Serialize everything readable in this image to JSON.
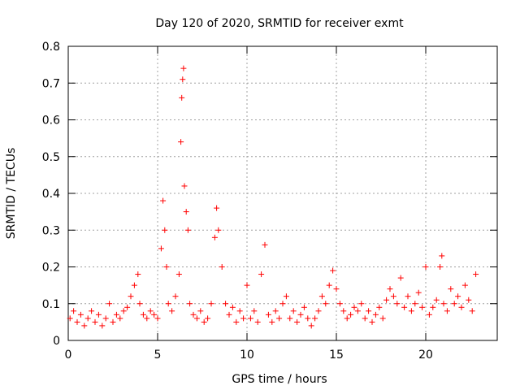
{
  "chart_data": {
    "type": "scatter",
    "title": "Day 120 of 2020, SRMTID for receiver exmt",
    "xlabel": "GPS time / hours",
    "ylabel": "SRMTID / TECUs",
    "xlim": [
      0,
      24
    ],
    "ylim": [
      0,
      0.8
    ],
    "xticks": [
      0,
      5,
      10,
      15,
      20
    ],
    "yticks": [
      0,
      0.1,
      0.2,
      0.3,
      0.4,
      0.5,
      0.6,
      0.7,
      0.8
    ],
    "xtick_labels": [
      "0",
      "5",
      "10",
      "15",
      "20"
    ],
    "ytick_labels": [
      "0",
      "0.1",
      "0.2",
      "0.3",
      "0.4",
      "0.5",
      "0.6",
      "0.7",
      "0.8"
    ],
    "grid": true,
    "marker": "+",
    "marker_color": "#ff0000",
    "series": [
      {
        "name": "SRMTID",
        "points": [
          [
            0.1,
            0.06
          ],
          [
            0.3,
            0.08
          ],
          [
            0.5,
            0.05
          ],
          [
            0.7,
            0.07
          ],
          [
            0.9,
            0.04
          ],
          [
            1.1,
            0.06
          ],
          [
            1.3,
            0.08
          ],
          [
            1.5,
            0.05
          ],
          [
            1.7,
            0.07
          ],
          [
            1.9,
            0.04
          ],
          [
            2.1,
            0.06
          ],
          [
            2.3,
            0.1
          ],
          [
            2.5,
            0.05
          ],
          [
            2.7,
            0.07
          ],
          [
            2.9,
            0.06
          ],
          [
            3.1,
            0.08
          ],
          [
            3.3,
            0.09
          ],
          [
            3.5,
            0.12
          ],
          [
            3.7,
            0.15
          ],
          [
            3.9,
            0.18
          ],
          [
            4.0,
            0.1
          ],
          [
            4.2,
            0.07
          ],
          [
            4.4,
            0.06
          ],
          [
            4.6,
            0.08
          ],
          [
            4.8,
            0.07
          ],
          [
            5.0,
            0.06
          ],
          [
            5.2,
            0.25
          ],
          [
            5.3,
            0.38
          ],
          [
            5.4,
            0.3
          ],
          [
            5.5,
            0.2
          ],
          [
            5.6,
            0.1
          ],
          [
            5.8,
            0.08
          ],
          [
            6.0,
            0.12
          ],
          [
            6.2,
            0.18
          ],
          [
            6.3,
            0.54
          ],
          [
            6.35,
            0.66
          ],
          [
            6.4,
            0.71
          ],
          [
            6.45,
            0.74
          ],
          [
            6.5,
            0.42
          ],
          [
            6.6,
            0.35
          ],
          [
            6.7,
            0.3
          ],
          [
            6.8,
            0.1
          ],
          [
            7.0,
            0.07
          ],
          [
            7.2,
            0.06
          ],
          [
            7.4,
            0.08
          ],
          [
            7.6,
            0.05
          ],
          [
            7.8,
            0.06
          ],
          [
            8.0,
            0.1
          ],
          [
            8.2,
            0.28
          ],
          [
            8.3,
            0.36
          ],
          [
            8.4,
            0.3
          ],
          [
            8.6,
            0.2
          ],
          [
            8.8,
            0.1
          ],
          [
            9.0,
            0.07
          ],
          [
            9.2,
            0.09
          ],
          [
            9.4,
            0.05
          ],
          [
            9.6,
            0.08
          ],
          [
            9.8,
            0.06
          ],
          [
            10.0,
            0.15
          ],
          [
            10.2,
            0.06
          ],
          [
            10.4,
            0.08
          ],
          [
            10.6,
            0.05
          ],
          [
            10.8,
            0.18
          ],
          [
            11.0,
            0.26
          ],
          [
            11.2,
            0.07
          ],
          [
            11.4,
            0.05
          ],
          [
            11.6,
            0.08
          ],
          [
            11.8,
            0.06
          ],
          [
            12.0,
            0.1
          ],
          [
            12.2,
            0.12
          ],
          [
            12.4,
            0.06
          ],
          [
            12.6,
            0.08
          ],
          [
            12.8,
            0.05
          ],
          [
            13.0,
            0.07
          ],
          [
            13.2,
            0.09
          ],
          [
            13.4,
            0.06
          ],
          [
            13.6,
            0.04
          ],
          [
            13.8,
            0.06
          ],
          [
            14.0,
            0.08
          ],
          [
            14.2,
            0.12
          ],
          [
            14.4,
            0.1
          ],
          [
            14.6,
            0.15
          ],
          [
            14.8,
            0.19
          ],
          [
            15.0,
            0.14
          ],
          [
            15.2,
            0.1
          ],
          [
            15.4,
            0.08
          ],
          [
            15.6,
            0.06
          ],
          [
            15.8,
            0.07
          ],
          [
            16.0,
            0.09
          ],
          [
            16.2,
            0.08
          ],
          [
            16.4,
            0.1
          ],
          [
            16.6,
            0.06
          ],
          [
            16.8,
            0.08
          ],
          [
            17.0,
            0.05
          ],
          [
            17.2,
            0.07
          ],
          [
            17.4,
            0.09
          ],
          [
            17.6,
            0.06
          ],
          [
            17.8,
            0.11
          ],
          [
            18.0,
            0.14
          ],
          [
            18.2,
            0.12
          ],
          [
            18.4,
            0.1
          ],
          [
            18.6,
            0.17
          ],
          [
            18.8,
            0.09
          ],
          [
            19.0,
            0.12
          ],
          [
            19.2,
            0.08
          ],
          [
            19.4,
            0.1
          ],
          [
            19.6,
            0.13
          ],
          [
            19.8,
            0.09
          ],
          [
            20.0,
            0.2
          ],
          [
            20.2,
            0.07
          ],
          [
            20.4,
            0.09
          ],
          [
            20.6,
            0.11
          ],
          [
            20.8,
            0.2
          ],
          [
            20.9,
            0.23
          ],
          [
            21.0,
            0.1
          ],
          [
            21.2,
            0.08
          ],
          [
            21.4,
            0.14
          ],
          [
            21.6,
            0.1
          ],
          [
            21.8,
            0.12
          ],
          [
            22.0,
            0.09
          ],
          [
            22.2,
            0.15
          ],
          [
            22.4,
            0.11
          ],
          [
            22.6,
            0.08
          ],
          [
            22.8,
            0.18
          ]
        ]
      }
    ]
  }
}
